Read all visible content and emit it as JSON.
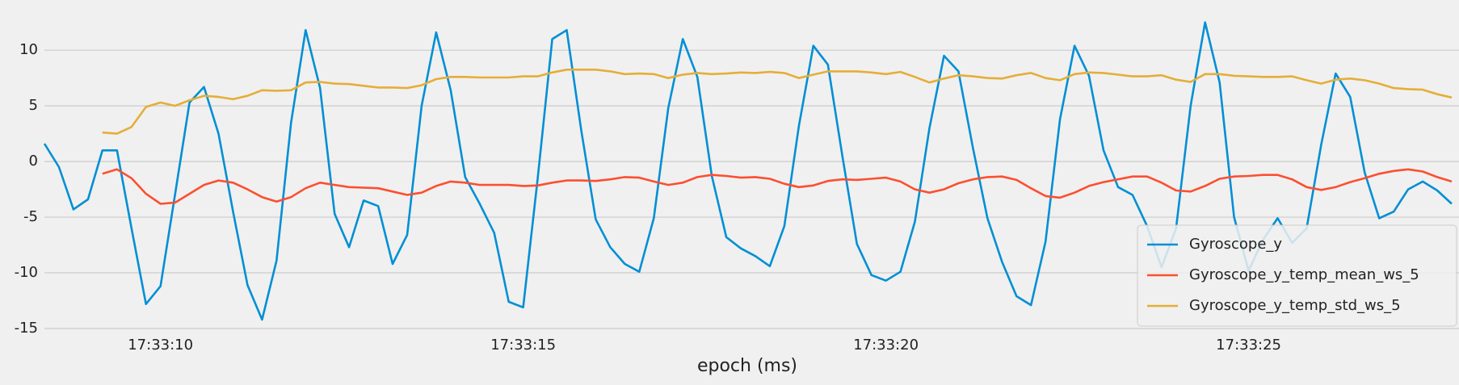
{
  "chart_data": {
    "type": "line",
    "xlabel": "epoch (ms)",
    "x": [
      "17:33:08.4",
      "17:33:08.6",
      "17:33:08.8",
      "17:33:09.0",
      "17:33:09.2",
      "17:33:09.4",
      "17:33:09.6",
      "17:33:09.8",
      "17:33:10.0",
      "17:33:10.2",
      "17:33:10.4",
      "17:33:10.6",
      "17:33:10.8",
      "17:33:11.0",
      "17:33:11.2",
      "17:33:11.4",
      "17:33:11.6",
      "17:33:11.8",
      "17:33:12.0",
      "17:33:12.2",
      "17:33:12.4",
      "17:33:12.6",
      "17:33:12.8",
      "17:33:13.0",
      "17:33:13.2",
      "17:33:13.4",
      "17:33:13.6",
      "17:33:13.8",
      "17:33:14.0",
      "17:33:14.2",
      "17:33:14.4",
      "17:33:14.6",
      "17:33:14.8",
      "17:33:15.0",
      "17:33:15.2",
      "17:33:15.4",
      "17:33:15.6",
      "17:33:15.8",
      "17:33:16.0",
      "17:33:16.2",
      "17:33:16.4",
      "17:33:16.6",
      "17:33:16.8",
      "17:33:17.0",
      "17:33:17.2",
      "17:33:17.4",
      "17:33:17.6",
      "17:33:17.8",
      "17:33:18.0",
      "17:33:18.2",
      "17:33:18.4",
      "17:33:18.6",
      "17:33:18.8",
      "17:33:19.0",
      "17:33:19.2",
      "17:33:19.4",
      "17:33:19.6",
      "17:33:19.8",
      "17:33:20.0",
      "17:33:20.2",
      "17:33:20.4",
      "17:33:20.6",
      "17:33:20.8",
      "17:33:21.0",
      "17:33:21.2",
      "17:33:21.4",
      "17:33:21.6",
      "17:33:21.8",
      "17:33:22.0",
      "17:33:22.2",
      "17:33:22.4",
      "17:33:22.6",
      "17:33:22.8",
      "17:33:23.0",
      "17:33:23.2",
      "17:33:23.4",
      "17:33:23.6",
      "17:33:23.8",
      "17:33:24.0",
      "17:33:24.2",
      "17:33:24.4",
      "17:33:24.6",
      "17:33:24.8",
      "17:33:25.0",
      "17:33:25.2",
      "17:33:25.4",
      "17:33:25.6",
      "17:33:25.8",
      "17:33:26.0",
      "17:33:26.2",
      "17:33:26.4",
      "17:33:26.6",
      "17:33:26.8",
      "17:33:27.0",
      "17:33:27.2",
      "17:33:27.4",
      "17:33:27.6",
      "17:33:27.8"
    ],
    "series": [
      {
        "name": "Gyroscope_y",
        "color": "#008fd5",
        "values": [
          1.6,
          -0.5,
          -4.3,
          -3.4,
          1.0,
          1.0,
          -6,
          -12.8,
          -11.2,
          -3,
          5.3,
          6.7,
          2.5,
          -4.5,
          -11.1,
          -14.2,
          -8.9,
          3.5,
          11.8,
          6.6,
          -4.7,
          -7.7,
          -3.5,
          -4.0,
          -9.2,
          -6.6,
          5.0,
          11.6,
          6.4,
          -1.4,
          -3.8,
          -6.4,
          -12.6,
          -13.1,
          -1.5,
          11.0,
          11.8,
          2.8,
          -5.2,
          -7.7,
          -9.2,
          -9.9,
          -5.1,
          4.8,
          11.0,
          7.6,
          -1.3,
          -6.8,
          -7.8,
          -8.5,
          -9.4,
          -5.8,
          3.2,
          10.4,
          8.7,
          0.5,
          -7.4,
          -10.2,
          -10.7,
          -9.9,
          -5.4,
          3.0,
          9.5,
          8.1,
          1.2,
          -5.1,
          -9.0,
          -12.1,
          -12.9,
          -7.2,
          3.8,
          10.4,
          7.7,
          1.0,
          -2.3,
          -3.0,
          -5.8,
          -9.5,
          -6.0,
          5.0,
          12.5,
          7.1,
          -5.0,
          -9.8,
          -7.0,
          -5.1,
          -7.3,
          -6.0,
          1.5,
          7.9,
          5.8,
          -1.0,
          -5.1,
          -4.5,
          -2.5,
          -1.8,
          -2.6,
          -3.8
        ]
      },
      {
        "name": "Gyroscope_y_temp_mean_ws_5",
        "color": "#fc4f30",
        "values": [
          null,
          null,
          null,
          null,
          -1.1,
          -0.7,
          -1.5,
          -2.9,
          -3.8,
          -3.7,
          -2.9,
          -2.1,
          -1.7,
          -1.9,
          -2.5,
          -3.2,
          -3.6,
          -3.2,
          -2.4,
          -1.9,
          -2.1,
          -2.3,
          -2.35,
          -2.4,
          -2.7,
          -3.0,
          -2.8,
          -2.2,
          -1.8,
          -1.9,
          -2.1,
          -2.1,
          -2.1,
          -2.2,
          -2.15,
          -1.9,
          -1.7,
          -1.7,
          -1.75,
          -1.6,
          -1.4,
          -1.45,
          -1.8,
          -2.1,
          -1.9,
          -1.4,
          -1.2,
          -1.3,
          -1.45,
          -1.4,
          -1.55,
          -2.0,
          -2.3,
          -2.15,
          -1.75,
          -1.6,
          -1.65,
          -1.55,
          -1.45,
          -1.8,
          -2.5,
          -2.8,
          -2.5,
          -1.95,
          -1.6,
          -1.4,
          -1.35,
          -1.65,
          -2.4,
          -3.1,
          -3.25,
          -2.8,
          -2.2,
          -1.85,
          -1.6,
          -1.35,
          -1.35,
          -1.9,
          -2.6,
          -2.7,
          -2.2,
          -1.55,
          -1.35,
          -1.3,
          -1.2,
          -1.2,
          -1.6,
          -2.3,
          -2.55,
          -2.3,
          -1.85,
          -1.5,
          -1.1,
          -0.85,
          -0.7,
          -0.9,
          -1.4,
          -1.8
        ]
      },
      {
        "name": "Gyroscope_y_temp_std_ws_5",
        "color": "#e5ae38",
        "values": [
          null,
          null,
          null,
          null,
          2.6,
          2.5,
          3.1,
          4.9,
          5.3,
          5.0,
          5.5,
          5.9,
          5.8,
          5.6,
          5.9,
          6.4,
          6.35,
          6.4,
          7.1,
          7.15,
          7.0,
          6.95,
          6.8,
          6.65,
          6.65,
          6.6,
          6.85,
          7.4,
          7.6,
          7.6,
          7.55,
          7.55,
          7.55,
          7.65,
          7.65,
          8.0,
          8.25,
          8.25,
          8.25,
          8.1,
          7.85,
          7.9,
          7.85,
          7.5,
          7.8,
          7.95,
          7.85,
          7.9,
          8.0,
          7.95,
          8.05,
          7.95,
          7.5,
          7.8,
          8.1,
          8.1,
          8.1,
          8.0,
          7.85,
          8.05,
          7.6,
          7.1,
          7.45,
          7.75,
          7.65,
          7.5,
          7.45,
          7.75,
          7.95,
          7.5,
          7.3,
          7.85,
          8.0,
          7.95,
          7.8,
          7.65,
          7.65,
          7.75,
          7.35,
          7.15,
          7.85,
          7.85,
          7.7,
          7.65,
          7.6,
          7.6,
          7.65,
          7.3,
          7.0,
          7.35,
          7.45,
          7.3,
          7.0,
          6.6,
          6.5,
          6.45,
          6.05,
          5.75
        ]
      }
    ],
    "xlim": [
      "17:33:08.4",
      "17:33:27.9"
    ],
    "xticks": [
      "17:33:10",
      "17:33:15",
      "17:33:20",
      "17:33:25"
    ],
    "ylim": [
      -15,
      14
    ],
    "yticks": [
      -15,
      -10,
      -5,
      0,
      5,
      10
    ],
    "grid": true,
    "legend": "lower right"
  }
}
